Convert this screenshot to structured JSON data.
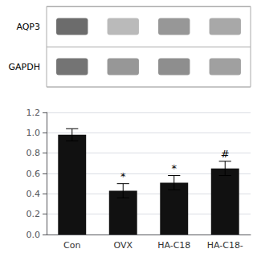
{
  "chart_data": [
    {
      "type": "heatmap",
      "rows": [
        "AQP3",
        "GAPDH"
      ],
      "cells": [
        [
          0.85,
          0.4,
          0.6,
          0.5
        ],
        [
          0.8,
          0.6,
          0.65,
          0.55
        ]
      ],
      "tick_labels": "y"
    },
    {
      "type": "bar",
      "categories": [
        "Con",
        "OVX",
        "HA-C18",
        "HA-C18-"
      ],
      "values": [
        0.98,
        0.43,
        0.51,
        0.65
      ],
      "errors": [
        0.06,
        0.07,
        0.07,
        0.07
      ],
      "annotations": [
        null,
        "*",
        "*",
        "#"
      ],
      "color": "#111111",
      "ylim": [
        0,
        1.2
      ],
      "yticks": [
        {
          "value": 0,
          "label": "0.0"
        },
        0.2,
        0.4,
        0.6,
        0.8,
        {
          "value": 1.0,
          "label": "1.0"
        },
        1.2
      ]
    }
  ]
}
